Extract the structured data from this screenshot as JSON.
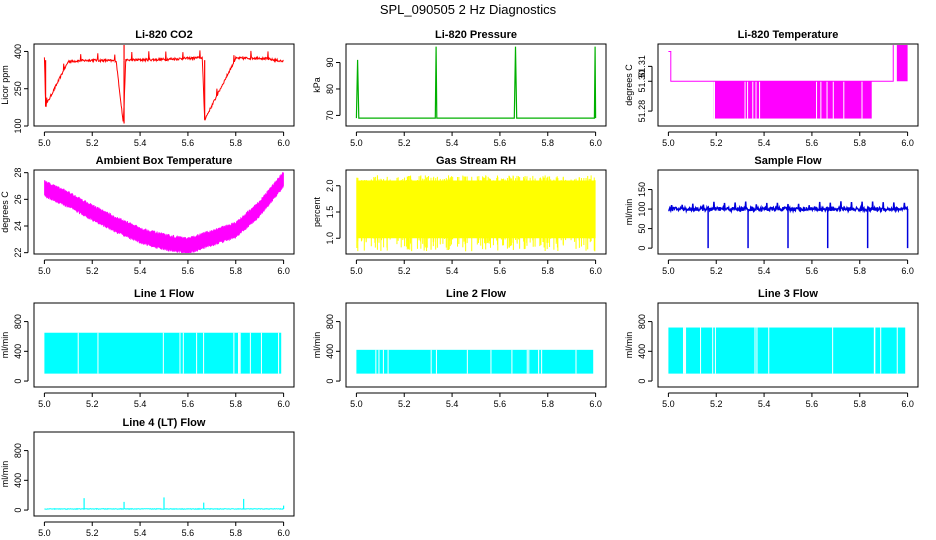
{
  "figure": {
    "title": "SPL_090505  2 Hz Diagnostics"
  },
  "chart_data": [
    {
      "type": "line",
      "title": "Li-820 CO2",
      "xlabel": "",
      "ylabel": "Licor ppm",
      "color": "#ff0000",
      "xlim": [
        5.0,
        6.0
      ],
      "ylim": [
        100,
        430
      ],
      "x_ticks": [
        "5.0",
        "5.2",
        "5.4",
        "5.6",
        "5.8",
        "6.0"
      ],
      "y_ticks": [
        {
          "value": 100,
          "label": "100"
        },
        {
          "value": 250,
          "label": "250"
        },
        {
          "value": 400,
          "label": "400"
        }
      ],
      "series": [
        {
          "x": [
            5.0,
            5.005,
            5.1,
            5.2,
            5.3,
            5.33,
            5.34,
            5.5,
            5.66,
            5.67,
            5.8,
            5.9,
            6.0
          ],
          "values": [
            380,
            180,
            360,
            365,
            362,
            110,
            365,
            368,
            375,
            125,
            372,
            374,
            360
          ]
        }
      ]
    },
    {
      "type": "line",
      "title": "Li-820 Pressure",
      "xlabel": "",
      "ylabel": "kPa",
      "color": "#00b000",
      "xlim": [
        5.0,
        6.0
      ],
      "ylim": [
        66,
        97
      ],
      "x_ticks": [
        "5.0",
        "5.2",
        "5.4",
        "5.6",
        "5.8",
        "6.0"
      ],
      "y_ticks": [
        {
          "value": 70,
          "label": "70"
        },
        {
          "value": 80,
          "label": "80"
        },
        {
          "value": 90,
          "label": "90"
        }
      ],
      "series": [
        {
          "x": [
            5.0,
            5.005,
            5.01,
            5.33,
            5.333,
            5.336,
            5.66,
            5.665,
            5.67,
            5.995,
            5.998,
            6.0
          ],
          "values": [
            69,
            91,
            69,
            69,
            96,
            69,
            69,
            96,
            69,
            69,
            96,
            69
          ]
        }
      ]
    },
    {
      "type": "line",
      "title": "Li-820 Temperature",
      "xlabel": "",
      "ylabel": "degrees C",
      "color": "#ff00ff",
      "xlim": [
        5.0,
        6.0
      ],
      "ylim": [
        51.27,
        51.325
      ],
      "x_ticks": [
        "5.0",
        "5.2",
        "5.4",
        "5.6",
        "5.8",
        "6.0"
      ],
      "y_ticks": [
        {
          "value": 51.28,
          "label": "51.28"
        },
        {
          "value": 51.3,
          "label": "51.30"
        },
        {
          "value": 51.31,
          "label": "51.31"
        }
      ],
      "series": [
        {
          "x": [
            5.0,
            5.01,
            5.02,
            5.18,
            5.19,
            5.85,
            5.86,
            5.94,
            5.95,
            6.0
          ],
          "values": [
            51.32,
            51.3,
            51.3,
            51.3,
            51.275,
            51.275,
            51.3,
            51.3,
            51.325,
            51.32
          ]
        }
      ]
    },
    {
      "type": "line",
      "title": "Ambient Box Temperature",
      "xlabel": "",
      "ylabel": "degrees C",
      "color": "#ff00ff",
      "xlim": [
        5.0,
        6.0
      ],
      "ylim": [
        21.9,
        28.2
      ],
      "x_ticks": [
        "5.0",
        "5.2",
        "5.4",
        "5.6",
        "5.8",
        "6.0"
      ],
      "y_ticks": [
        {
          "value": 22,
          "label": "22"
        },
        {
          "value": 24,
          "label": "24"
        },
        {
          "value": 26,
          "label": "26"
        },
        {
          "value": 28,
          "label": "28"
        }
      ],
      "series": [
        {
          "x": [
            5.0,
            5.1,
            5.2,
            5.3,
            5.4,
            5.5,
            5.6,
            5.7,
            5.8,
            5.9,
            6.0
          ],
          "values": [
            26.8,
            26.0,
            25.0,
            24.1,
            23.3,
            22.8,
            22.5,
            23.1,
            23.7,
            25.3,
            27.5
          ]
        }
      ]
    },
    {
      "type": "line",
      "title": "Gas Stream RH",
      "xlabel": "",
      "ylabel": "percent",
      "color": "#ffff00",
      "xlim": [
        5.0,
        6.0
      ],
      "ylim": [
        0.7,
        2.3
      ],
      "x_ticks": [
        "5.0",
        "5.2",
        "5.4",
        "5.6",
        "5.8",
        "6.0"
      ],
      "y_ticks": [
        {
          "value": 1.0,
          "label": "1.0"
        },
        {
          "value": 1.5,
          "label": "1.5"
        },
        {
          "value": 2.0,
          "label": "2.0"
        }
      ],
      "series": [
        {
          "x": [
            5.0,
            6.0
          ],
          "values": [
            1.0,
            2.1
          ]
        }
      ]
    },
    {
      "type": "line",
      "title": "Sample Flow",
      "xlabel": "",
      "ylabel": "ml/min",
      "color": "#0000dd",
      "xlim": [
        5.0,
        6.0
      ],
      "ylim": [
        -15,
        200
      ],
      "x_ticks": [
        "5.0",
        "5.2",
        "5.4",
        "5.6",
        "5.8",
        "6.0"
      ],
      "y_ticks": [
        {
          "value": 0,
          "label": "0"
        },
        {
          "value": 50,
          "label": "50"
        },
        {
          "value": 100,
          "label": "100"
        },
        {
          "value": 150,
          "label": "150"
        }
      ],
      "series": [
        {
          "x": [
            5.0,
            5.166,
            5.333,
            5.5,
            5.666,
            5.833,
            6.0
          ],
          "values": [
            100,
            0,
            0,
            0,
            0,
            0,
            0
          ]
        }
      ]
    },
    {
      "type": "line",
      "title": "Line 1 Flow",
      "xlabel": "",
      "ylabel": "ml/min",
      "color": "#00ffff",
      "xlim": [
        5.0,
        6.0
      ],
      "ylim": [
        -80,
        1050
      ],
      "x_ticks": [
        "5.0",
        "5.2",
        "5.4",
        "5.6",
        "5.8",
        "6.0"
      ],
      "y_ticks": [
        {
          "value": 0,
          "label": "0"
        },
        {
          "value": 400,
          "label": "400"
        },
        {
          "value": 800,
          "label": "800"
        }
      ],
      "series": [
        {
          "x": [
            5.0,
            6.0
          ],
          "values": [
            100,
            650
          ]
        }
      ]
    },
    {
      "type": "line",
      "title": "Line 2 Flow",
      "xlabel": "",
      "ylabel": "ml/min",
      "color": "#00ffff",
      "xlim": [
        5.0,
        6.0
      ],
      "ylim": [
        -80,
        1050
      ],
      "x_ticks": [
        "5.0",
        "5.2",
        "5.4",
        "5.6",
        "5.8",
        "6.0"
      ],
      "y_ticks": [
        {
          "value": 0,
          "label": "0"
        },
        {
          "value": 400,
          "label": "400"
        },
        {
          "value": 800,
          "label": "800"
        }
      ],
      "series": [
        {
          "x": [
            5.0,
            6.0
          ],
          "values": [
            100,
            420
          ]
        }
      ]
    },
    {
      "type": "line",
      "title": "Line 3 Flow",
      "xlabel": "",
      "ylabel": "ml/min",
      "color": "#00ffff",
      "xlim": [
        5.0,
        6.0
      ],
      "ylim": [
        -80,
        1050
      ],
      "x_ticks": [
        "5.0",
        "5.2",
        "5.4",
        "5.6",
        "5.8",
        "6.0"
      ],
      "y_ticks": [
        {
          "value": 0,
          "label": "0"
        },
        {
          "value": 400,
          "label": "400"
        },
        {
          "value": 800,
          "label": "800"
        }
      ],
      "series": [
        {
          "x": [
            5.0,
            6.0
          ],
          "values": [
            100,
            720
          ]
        }
      ]
    },
    {
      "type": "line",
      "title": "Line 4 (LT) Flow",
      "xlabel": "",
      "ylabel": "ml/min",
      "color": "#00ffff",
      "xlim": [
        5.0,
        6.0
      ],
      "ylim": [
        -80,
        1050
      ],
      "x_ticks": [
        "5.0",
        "5.2",
        "5.4",
        "5.6",
        "5.8",
        "6.0"
      ],
      "y_ticks": [
        {
          "value": 0,
          "label": "0"
        },
        {
          "value": 400,
          "label": "400"
        },
        {
          "value": 800,
          "label": "800"
        }
      ],
      "series": [
        {
          "x": [
            5.0,
            5.166,
            5.333,
            5.5,
            5.666,
            5.833,
            6.0
          ],
          "values": [
            20,
            160,
            110,
            170,
            100,
            150,
            60
          ]
        }
      ]
    }
  ]
}
